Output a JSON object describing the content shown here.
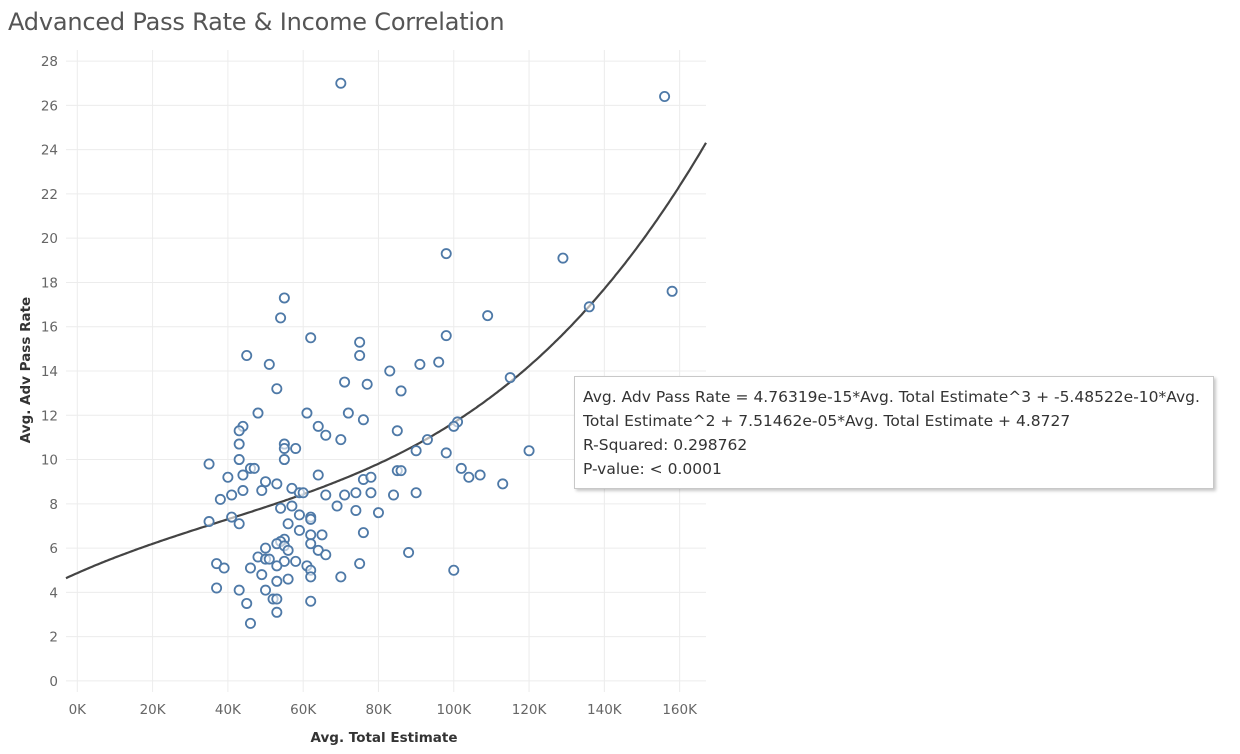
{
  "title": "Advanced Pass Rate & Income Correlation",
  "tooltip": {
    "equation_line1": "Avg. Adv Pass Rate = 4.76319e-15*Avg. Total Estimate^3 + -5.48522e-10*Avg.",
    "equation_line2": "Total Estimate^2 + 7.51462e-05*Avg. Total Estimate + 4.8727",
    "r_squared": "R-Squared: 0.298762",
    "p_value": "P-value: < 0.0001"
  },
  "colors": {
    "marker": "#4e79a7",
    "trend": "#444444",
    "grid": "#ececec"
  },
  "chart_data": {
    "type": "scatter",
    "title": "Advanced Pass Rate & Income Correlation",
    "xlabel": "Avg. Total Estimate",
    "ylabel": "Avg. Adv Pass Rate",
    "xlim": [
      -3000,
      167000
    ],
    "ylim": [
      -0.5,
      28.5
    ],
    "x_ticks": [
      0,
      20000,
      40000,
      60000,
      80000,
      100000,
      120000,
      140000,
      160000
    ],
    "x_tick_labels": [
      "0K",
      "20K",
      "40K",
      "60K",
      "80K",
      "100K",
      "120K",
      "140K",
      "160K"
    ],
    "y_ticks": [
      0,
      2,
      4,
      6,
      8,
      10,
      12,
      14,
      16,
      18,
      20,
      22,
      24,
      26,
      28
    ],
    "y_tick_labels": [
      "0",
      "2",
      "4",
      "6",
      "8",
      "10",
      "12",
      "14",
      "16",
      "18",
      "20",
      "22",
      "24",
      "26",
      "28"
    ],
    "grid": true,
    "trend_line": {
      "type": "polynomial",
      "degree": 3,
      "coefficients": [
        4.76319e-15,
        -5.48522e-10,
        7.51462e-05,
        4.8727
      ]
    },
    "points": [
      [
        70000,
        27.0
      ],
      [
        156000,
        26.4
      ],
      [
        98000,
        19.3
      ],
      [
        129000,
        19.1
      ],
      [
        158000,
        17.6
      ],
      [
        55000,
        17.3
      ],
      [
        136000,
        16.9
      ],
      [
        109000,
        16.5
      ],
      [
        54000,
        16.4
      ],
      [
        98000,
        15.6
      ],
      [
        62000,
        15.5
      ],
      [
        75000,
        15.3
      ],
      [
        45000,
        14.7
      ],
      [
        75000,
        14.7
      ],
      [
        51000,
        14.3
      ],
      [
        91000,
        14.3
      ],
      [
        96000,
        14.4
      ],
      [
        83000,
        14.0
      ],
      [
        115000,
        13.7
      ],
      [
        71000,
        13.5
      ],
      [
        77000,
        13.4
      ],
      [
        53000,
        13.2
      ],
      [
        86000,
        13.1
      ],
      [
        48000,
        12.1
      ],
      [
        61000,
        12.1
      ],
      [
        72000,
        12.1
      ],
      [
        76000,
        11.8
      ],
      [
        101000,
        11.7
      ],
      [
        100000,
        11.5
      ],
      [
        44000,
        11.5
      ],
      [
        64000,
        11.5
      ],
      [
        43000,
        11.3
      ],
      [
        85000,
        11.3
      ],
      [
        66000,
        11.1
      ],
      [
        70000,
        10.9
      ],
      [
        93000,
        10.9
      ],
      [
        43000,
        10.7
      ],
      [
        55000,
        10.7
      ],
      [
        55000,
        10.5
      ],
      [
        58000,
        10.5
      ],
      [
        90000,
        10.4
      ],
      [
        98000,
        10.3
      ],
      [
        120000,
        10.4
      ],
      [
        55000,
        10.0
      ],
      [
        43000,
        10.0
      ],
      [
        35000,
        9.8
      ],
      [
        46000,
        9.6
      ],
      [
        47000,
        9.6
      ],
      [
        85000,
        9.5
      ],
      [
        86000,
        9.5
      ],
      [
        102000,
        9.6
      ],
      [
        64000,
        9.3
      ],
      [
        104000,
        9.2
      ],
      [
        107000,
        9.3
      ],
      [
        44000,
        9.3
      ],
      [
        40000,
        9.2
      ],
      [
        76000,
        9.1
      ],
      [
        78000,
        9.2
      ],
      [
        50000,
        9.0
      ],
      [
        53000,
        8.9
      ],
      [
        113000,
        8.9
      ],
      [
        57000,
        8.7
      ],
      [
        49000,
        8.6
      ],
      [
        59000,
        8.5
      ],
      [
        44000,
        8.6
      ],
      [
        60000,
        8.5
      ],
      [
        41000,
        8.4
      ],
      [
        66000,
        8.4
      ],
      [
        71000,
        8.4
      ],
      [
        74000,
        8.5
      ],
      [
        78000,
        8.5
      ],
      [
        84000,
        8.4
      ],
      [
        90000,
        8.5
      ],
      [
        38000,
        8.2
      ],
      [
        57000,
        7.9
      ],
      [
        54000,
        7.8
      ],
      [
        69000,
        7.9
      ],
      [
        74000,
        7.7
      ],
      [
        80000,
        7.6
      ],
      [
        59000,
        7.5
      ],
      [
        62000,
        7.4
      ],
      [
        62000,
        7.3
      ],
      [
        41000,
        7.4
      ],
      [
        56000,
        7.1
      ],
      [
        35000,
        7.2
      ],
      [
        43000,
        7.1
      ],
      [
        59000,
        6.8
      ],
      [
        62000,
        6.6
      ],
      [
        65000,
        6.6
      ],
      [
        76000,
        6.7
      ],
      [
        55000,
        6.4
      ],
      [
        54000,
        6.3
      ],
      [
        53000,
        6.2
      ],
      [
        55000,
        6.1
      ],
      [
        50000,
        6.0
      ],
      [
        62000,
        6.2
      ],
      [
        56000,
        5.9
      ],
      [
        64000,
        5.9
      ],
      [
        66000,
        5.7
      ],
      [
        88000,
        5.8
      ],
      [
        48000,
        5.6
      ],
      [
        50000,
        5.5
      ],
      [
        51000,
        5.5
      ],
      [
        55000,
        5.4
      ],
      [
        58000,
        5.4
      ],
      [
        37000,
        5.3
      ],
      [
        75000,
        5.3
      ],
      [
        39000,
        5.1
      ],
      [
        46000,
        5.1
      ],
      [
        53000,
        5.2
      ],
      [
        61000,
        5.2
      ],
      [
        62000,
        5.0
      ],
      [
        100000,
        5.0
      ],
      [
        49000,
        4.8
      ],
      [
        62000,
        4.7
      ],
      [
        70000,
        4.7
      ],
      [
        53000,
        4.5
      ],
      [
        56000,
        4.6
      ],
      [
        37000,
        4.2
      ],
      [
        43000,
        4.1
      ],
      [
        50000,
        4.1
      ],
      [
        52000,
        3.7
      ],
      [
        53000,
        3.7
      ],
      [
        45000,
        3.5
      ],
      [
        62000,
        3.6
      ],
      [
        53000,
        3.1
      ],
      [
        46000,
        2.6
      ]
    ]
  }
}
